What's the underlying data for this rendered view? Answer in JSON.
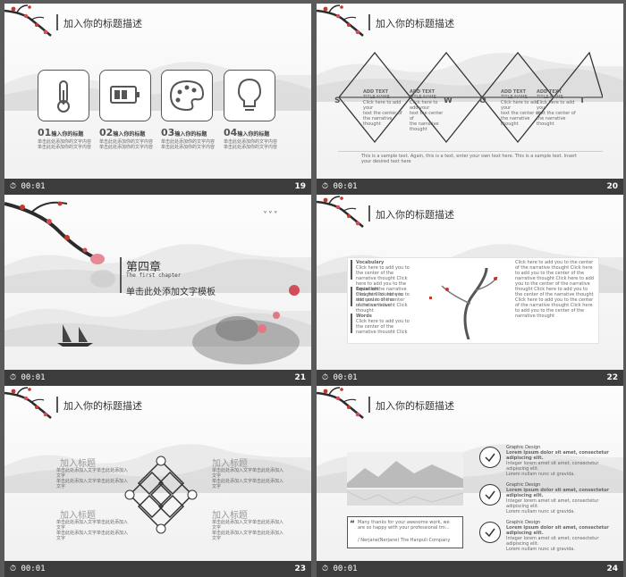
{
  "slides": {
    "s19": {
      "header": "加入你的标题描述",
      "items": [
        {
          "num": "01",
          "label": "输入你的标题",
          "l1": "单击此处添加你的文字内容",
          "l2": "单击此处添加你的文字内容"
        },
        {
          "num": "02",
          "label": "输入你的标题",
          "l1": "单击此处添加你的文字内容",
          "l2": "单击此处添加你的文字内容"
        },
        {
          "num": "03",
          "label": "输入你的标题",
          "l1": "单击此处添加你的文字内容",
          "l2": "单击此处添加你的文字内容"
        },
        {
          "num": "04",
          "label": "输入你的标题",
          "l1": "单击此处添加你的文字内容",
          "l2": "单击此处添加你的文字内容"
        }
      ],
      "time": "00:01",
      "num": "19"
    },
    "s20": {
      "header": "加入你的标题描述",
      "letters": [
        "S",
        "W",
        "O",
        "T"
      ],
      "boxes": [
        {
          "title": "ADD TEXT",
          "sub": "TITLE NAME",
          "l1": "Click here to add your",
          "l2": "text the center of",
          "l3": "the narrative thought"
        },
        {
          "title": "ADD TEXT",
          "sub": "TITLE NAME",
          "l1": "Click here to add your",
          "l2": "text the center of",
          "l3": "the narrative thought"
        },
        {
          "title": "ADD TEXT",
          "sub": "TITLE NAME",
          "l1": "Click here to add your",
          "l2": "text the center of",
          "l3": "the narrative thought"
        },
        {
          "title": "ADD TEXT",
          "sub": "TITLE NAME",
          "l1": "Click here to add your",
          "l2": "text the center of",
          "l3": "the narrative thought"
        }
      ],
      "caption": "This is a sample text. Again, this is a text, enter your own text here. This is a sample text. Insert your desired text here",
      "time": "00:01",
      "num": "20"
    },
    "s21": {
      "chapter": "第四章",
      "sub": "The first chapter",
      "title": "单击此处添加文字模板",
      "time": "00:01",
      "num": "21"
    },
    "s22": {
      "header": "加入你的标题描述",
      "labels": [
        "Vocabulary",
        "Equation",
        "Words"
      ],
      "para": "Click here to add you to the center of the narrative thought Click here to add you to the center of the narrative thought Click here to add you to the center of the narrative thought",
      "right": "Click here to add you to the center of the narrative thought Click here to add you to the center of the narrative thought Click here to add you to the center of the narrative thought Click here to add you to the center of the narrative thought Click here to add you to the center of the narrative thought Click here to add you to the center of the narrative thought",
      "time": "00:01",
      "num": "22"
    },
    "s23": {
      "header": "加入你的标题描述",
      "blocks": [
        {
          "title": "加入标题",
          "l1": "单击此处添加入文字单击此处添加入文字",
          "l2": "单击此处添加入文字单击此处添加入文字"
        },
        {
          "title": "加入标题",
          "l1": "单击此处添加入文字单击此处添加入文字",
          "l2": "单击此处添加入文字单击此处添加入文字"
        },
        {
          "title": "加入标题",
          "l1": "单击此处添加入文字单击此处添加入文字",
          "l2": "单击此处添加入文字单击此处添加入文字"
        },
        {
          "title": "加入标题",
          "l1": "单击此处添加入文字单击此处添加入文字",
          "l2": "单击此处添加入文字单击此处添加入文字"
        }
      ],
      "time": "00:01",
      "num": "23"
    },
    "s24": {
      "header": "加入你的标题描述",
      "quote": "Many thanks for your awesome work, we are so happy with your professional tm...",
      "quote_by": "/ Nerjane(Nerjane) The Hanpuli Company",
      "items": [
        {
          "title": "Graphic Design",
          "l1": "Lorem ipsum dolor sit amet, consectetur adipiscing elit.",
          "l2": "Integer lorem amet sit amet, consectetur adipiscing elit.",
          "l3": "Lorem nullam nunc ut gravida."
        },
        {
          "title": "Graphic Design",
          "l1": "Lorem ipsum dolor sit amet, consectetur adipiscing elit.",
          "l2": "Integer lorem amet sit amet, consectetur adipiscing elit.",
          "l3": "Lorem nullam nunc ut gravida."
        },
        {
          "title": "Graphic Design",
          "l1": "Lorem ipsum dolor sit amet, consectetur adipiscing elit.",
          "l2": "Integer lorem amet sit amet, consectetur adipiscing elit.",
          "l3": "Lorem nullam nunc ut gravida."
        }
      ],
      "time": "00:01",
      "num": "24"
    }
  },
  "colors": {
    "accent_red": "#c0392b",
    "ink": "#333333",
    "frame": "#3c3c3c"
  }
}
